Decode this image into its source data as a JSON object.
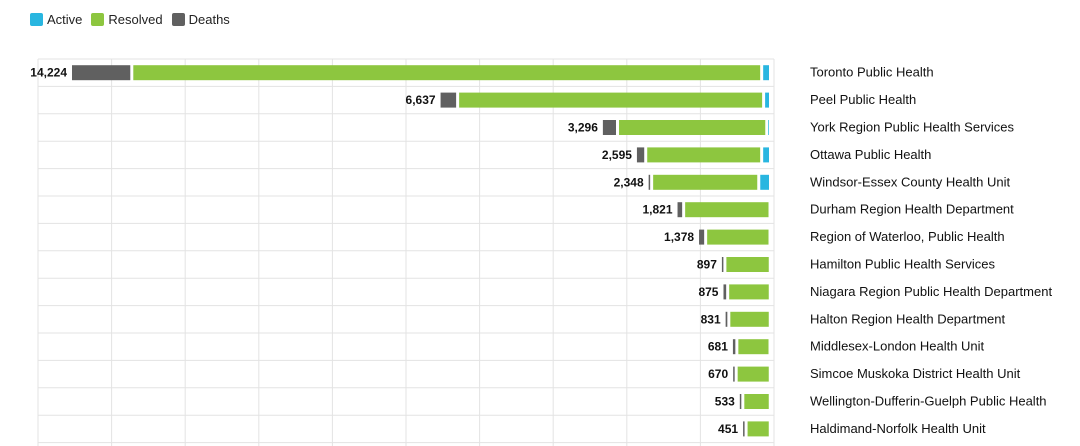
{
  "legend": {
    "active": "Active",
    "resolved": "Resolved",
    "deaths": "Deaths"
  },
  "colors": {
    "active": "#29b6e0",
    "resolved": "#8dc63f",
    "deaths": "#606060",
    "grid": "#e3e3e3"
  },
  "chart_data": {
    "type": "bar",
    "orientation": "horizontal",
    "stacked": true,
    "legend_position": "top-left",
    "grid": true,
    "categories": [
      "Toronto Public Health",
      "Peel Public Health",
      "York Region Public Health Services",
      "Ottawa Public Health",
      "Windsor-Essex County Health Unit",
      "Durham Region Health Department",
      "Region of Waterloo, Public Health",
      "Hamilton Public Health Services",
      "Niagara Region Public Health Department",
      "Halton Region Health Department",
      "Middlesex-London Health Unit",
      "Simcoe Muskoka District Health Unit",
      "Wellington-Dufferin-Guelph Public Health",
      "Haldimand-Norfolk Health Unit"
    ],
    "totals": [
      14224,
      6637,
      3296,
      2595,
      2348,
      1821,
      1378,
      897,
      875,
      831,
      681,
      670,
      533,
      451
    ],
    "total_labels": [
      "14,224",
      "6,637",
      "3,296",
      "2,595",
      "2,348",
      "1,821",
      "1,378",
      "897",
      "875",
      "831",
      "681",
      "670",
      "533",
      "451"
    ],
    "series": [
      {
        "name": "Active",
        "values": [
          120,
          80,
          15,
          120,
          180,
          10,
          10,
          5,
          5,
          5,
          10,
          5,
          5,
          5
        ]
      },
      {
        "name": "Resolved",
        "values": [
          12904,
          6237,
          3011,
          2325,
          2143,
          1716,
          1263,
          872,
          815,
          791,
          621,
          640,
          503,
          436
        ]
      },
      {
        "name": "Deaths",
        "values": [
          1200,
          320,
          270,
          150,
          25,
          95,
          105,
          20,
          55,
          35,
          50,
          25,
          25,
          10
        ]
      }
    ],
    "xlim": [
      0,
      14224
    ]
  }
}
